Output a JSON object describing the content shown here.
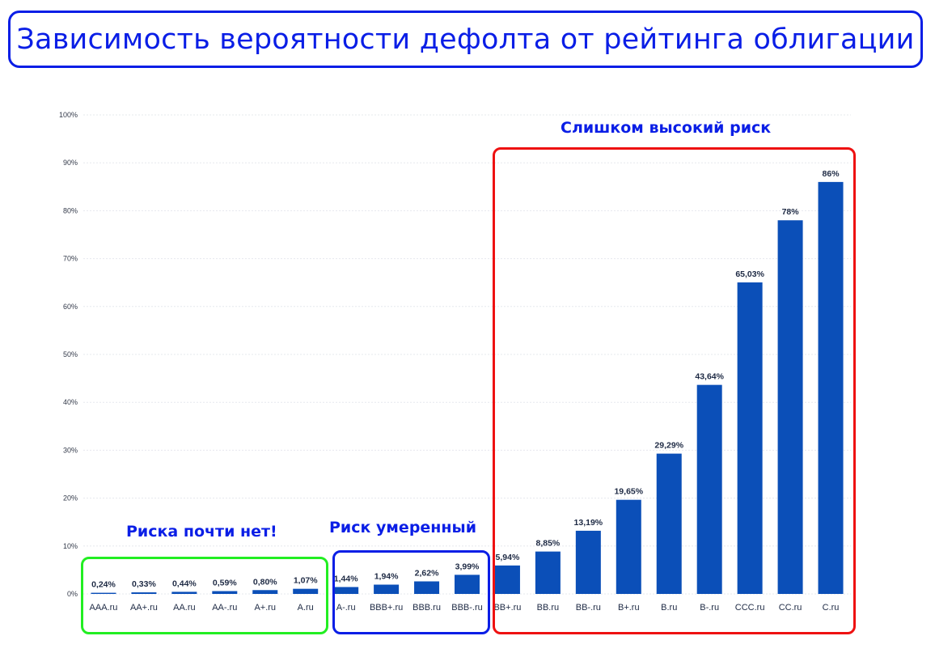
{
  "title": "Зависимость вероятности дефолта от рейтинга облигации",
  "colors": {
    "accent": "#0a1ee6",
    "bar": "#0b4fb8",
    "low_risk": "#22ee22",
    "moderate_risk": "#0a1ee6",
    "high_risk": "#ee1111"
  },
  "zones": {
    "low": {
      "label": "Риска почти нет!"
    },
    "moderate": {
      "label": "Риск умеренный"
    },
    "high": {
      "label": "Слишком высокий риск"
    }
  },
  "chart_data": {
    "type": "bar",
    "categories": [
      "AAA.ru",
      "AA+.ru",
      "AA.ru",
      "AA-.ru",
      "A+.ru",
      "A.ru",
      "A-.ru",
      "BBB+.ru",
      "BBB.ru",
      "BBB-.ru",
      "BB+.ru",
      "BB.ru",
      "BB-.ru",
      "B+.ru",
      "B.ru",
      "B-.ru",
      "CCC.ru",
      "CC.ru",
      "C.ru"
    ],
    "values": [
      0.24,
      0.33,
      0.44,
      0.59,
      0.8,
      1.07,
      1.44,
      1.94,
      2.62,
      3.99,
      5.94,
      8.85,
      13.19,
      19.65,
      29.29,
      43.64,
      65.03,
      78,
      86
    ],
    "data_labels": [
      "0,24%",
      "0,33%",
      "0,44%",
      "0,59%",
      "0,80%",
      "1,07%",
      "1,44%",
      "1,94%",
      "2,62%",
      "3,99%",
      "5,94%",
      "8,85%",
      "13,19%",
      "19,65%",
      "29,29%",
      "43,64%",
      "65,03%",
      "78%",
      "86%"
    ],
    "y_ticks": [
      "0%",
      "10%",
      "20%",
      "30%",
      "40%",
      "50%",
      "60%",
      "70%",
      "80%",
      "90%",
      "100%"
    ],
    "ylim": [
      0,
      100
    ],
    "grid": true
  }
}
